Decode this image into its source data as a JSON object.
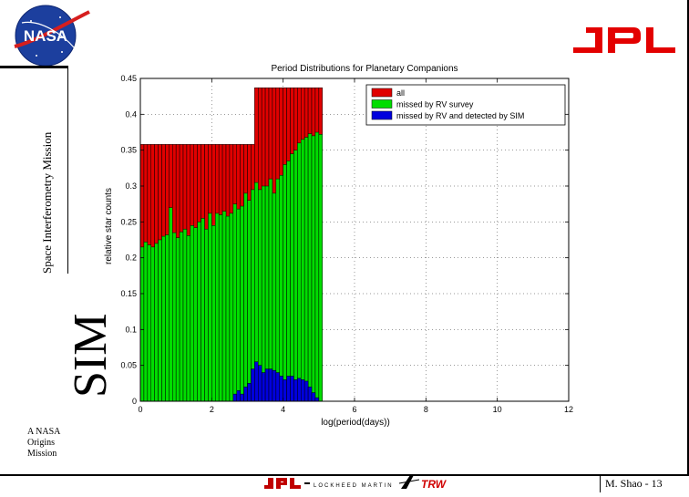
{
  "header": {
    "nasa_logo_text": "NASA"
  },
  "sidebar": {
    "mission_text": "Space Interferometry Mission",
    "sim_text": "SIM"
  },
  "footer": {
    "origins_lines": [
      "A NASA",
      "Origins",
      "Mission"
    ],
    "page_label": "M. Shao - 13",
    "partner_logos": [
      "jpl-logo",
      "lockheed-martin-logo",
      "trw-logo"
    ]
  },
  "colors": {
    "all": "#e00000",
    "missed_rv": "#00dd00",
    "missed_rv_sim": "#0000dd"
  },
  "chart_data": {
    "type": "bar",
    "title": "Period Distributions for Planetary Companions",
    "xlabel": "log(period(days))",
    "ylabel": "relative star counts",
    "xlim": [
      0,
      12
    ],
    "ylim": [
      0,
      0.45
    ],
    "xticks": [
      0,
      2,
      4,
      6,
      8,
      10,
      12
    ],
    "yticks": [
      0,
      0.05,
      0.1,
      0.15,
      0.2,
      0.25,
      0.3,
      0.35,
      0.4,
      0.45
    ],
    "bin_width": 0.1,
    "x_start": 0,
    "grid": true,
    "legend_position": "top-right",
    "series": [
      {
        "name": "all",
        "key": "all",
        "values": [
          0.358,
          0.358,
          0.358,
          0.358,
          0.358,
          0.358,
          0.358,
          0.358,
          0.358,
          0.358,
          0.358,
          0.358,
          0.358,
          0.358,
          0.358,
          0.358,
          0.358,
          0.358,
          0.358,
          0.358,
          0.358,
          0.358,
          0.358,
          0.358,
          0.358,
          0.358,
          0.358,
          0.358,
          0.358,
          0.358,
          0.358,
          0.358,
          0.437,
          0.437,
          0.437,
          0.437,
          0.437,
          0.437,
          0.437,
          0.437,
          0.437,
          0.437,
          0.437,
          0.437,
          0.437,
          0.437,
          0.437,
          0.437,
          0.437,
          0.437,
          0.437
        ]
      },
      {
        "name": "missed by RV survey",
        "key": "missed_rv",
        "values": [
          0.215,
          0.222,
          0.218,
          0.215,
          0.22,
          0.225,
          0.23,
          0.232,
          0.27,
          0.235,
          0.228,
          0.236,
          0.24,
          0.231,
          0.245,
          0.242,
          0.25,
          0.255,
          0.24,
          0.262,
          0.245,
          0.262,
          0.26,
          0.265,
          0.258,
          0.262,
          0.275,
          0.268,
          0.272,
          0.29,
          0.28,
          0.295,
          0.305,
          0.295,
          0.3,
          0.3,
          0.31,
          0.29,
          0.31,
          0.315,
          0.33,
          0.335,
          0.345,
          0.35,
          0.36,
          0.365,
          0.368,
          0.373,
          0.37,
          0.375,
          0.372
        ]
      },
      {
        "name": "missed by RV and detected by SIM",
        "key": "missed_rv_sim",
        "values": [
          0,
          0,
          0,
          0,
          0,
          0,
          0,
          0,
          0,
          0,
          0,
          0,
          0,
          0,
          0,
          0,
          0,
          0,
          0,
          0,
          0,
          0,
          0,
          0,
          0,
          0,
          0.01,
          0.015,
          0.01,
          0.02,
          0.025,
          0.045,
          0.055,
          0.05,
          0.04,
          0.045,
          0.045,
          0.043,
          0.04,
          0.035,
          0.03,
          0.035,
          0.035,
          0.03,
          0.032,
          0.03,
          0.028,
          0.02,
          0.012,
          0.005,
          0
        ]
      }
    ]
  }
}
